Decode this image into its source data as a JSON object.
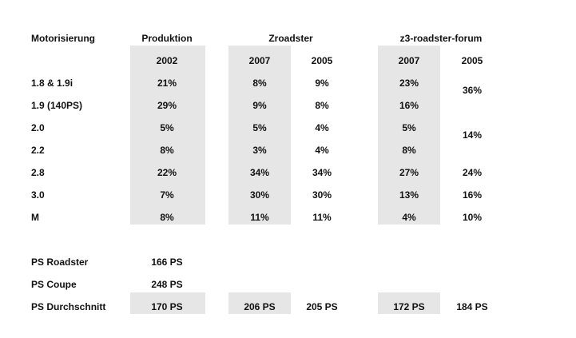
{
  "headers": {
    "motorisierung": "Motorisierung",
    "produktion": "Produktion",
    "zroadster": "Zroadster",
    "forum": "z3-roadster-forum"
  },
  "years": {
    "produktion": "2002",
    "zroadster_2007": "2007",
    "zroadster_2005": "2005",
    "forum_2007": "2007",
    "forum_2005": "2005"
  },
  "rows": [
    {
      "engine": "1.8 & 1.9i",
      "produktion": "21%",
      "zroadster_2007": "8%",
      "zroadster_2005": "9%",
      "forum_2007": "23%"
    },
    {
      "engine": "1.9 (140PS)",
      "produktion": "29%",
      "zroadster_2007": "9%",
      "zroadster_2005": "8%",
      "forum_2007": "16%"
    },
    {
      "engine": "2.0",
      "produktion": "5%",
      "zroadster_2007": "5%",
      "zroadster_2005": "4%",
      "forum_2007": "5%"
    },
    {
      "engine": "2.2",
      "produktion": "8%",
      "zroadster_2007": "3%",
      "zroadster_2005": "4%",
      "forum_2007": "8%"
    },
    {
      "engine": "2.8",
      "produktion": "22%",
      "zroadster_2007": "34%",
      "zroadster_2005": "34%",
      "forum_2007": "27%",
      "forum_2005": "24%"
    },
    {
      "engine": "3.0",
      "produktion": "7%",
      "zroadster_2007": "30%",
      "zroadster_2005": "30%",
      "forum_2007": "13%",
      "forum_2005": "16%"
    },
    {
      "engine": "M",
      "produktion": "8%",
      "zroadster_2007": "11%",
      "zroadster_2005": "11%",
      "forum_2007": "4%",
      "forum_2005": "10%"
    }
  ],
  "forum_2005_merged": {
    "rows_1_2": "36%",
    "rows_3_4": "14%"
  },
  "ps": {
    "roadster_label": "PS Roadster",
    "roadster_value": "166 PS",
    "coupe_label": "PS Coupe",
    "coupe_value": "248 PS",
    "avg_label": "PS Durchschnitt",
    "avg_produktion": "170 PS",
    "avg_zroadster_2007": "206 PS",
    "avg_zroadster_2005": "205 PS",
    "avg_forum_2007": "172 PS",
    "avg_forum_2005": "184 PS"
  },
  "colors": {
    "shade": "#e6e6e6",
    "text": "#111111"
  }
}
